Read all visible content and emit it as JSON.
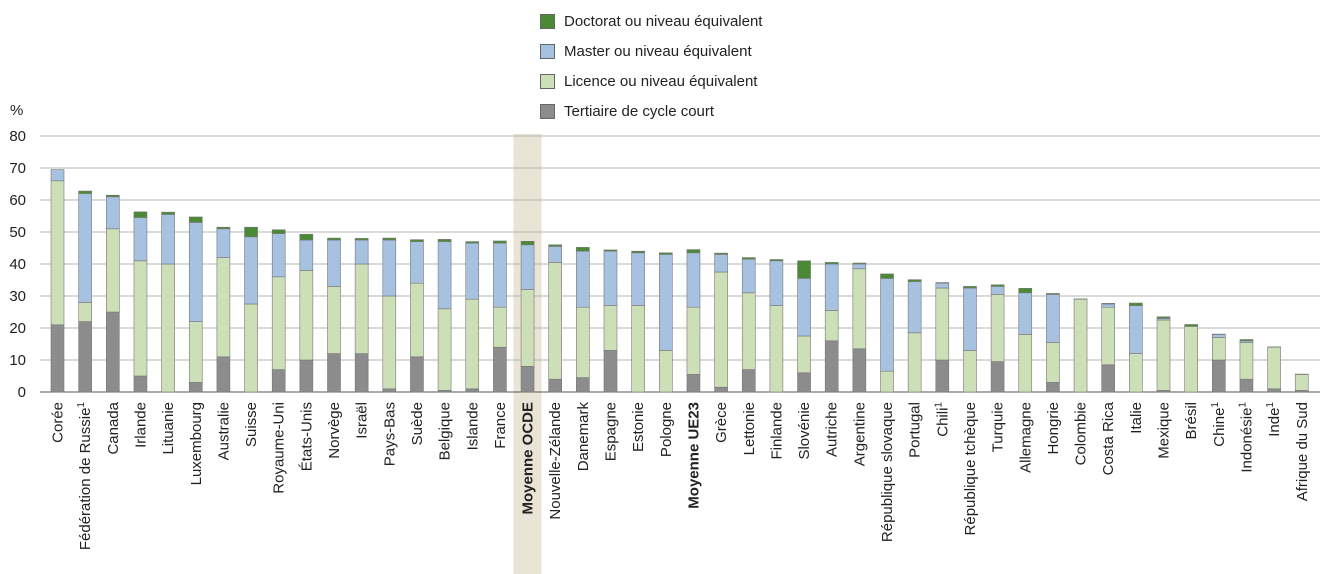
{
  "chart_data": {
    "type": "bar",
    "stacked": true,
    "ylabel": "%",
    "ylim": [
      0,
      80
    ],
    "yticks": [
      0,
      10,
      20,
      30,
      40,
      50,
      60,
      70,
      80
    ],
    "grid": true,
    "legend_placement": "top-center",
    "categories": [
      "Corée",
      "Fédération de Russie¹",
      "Canada",
      "Irlande",
      "Lituanie",
      "Luxembourg",
      "Australie",
      "Suisse",
      "Royaume-Uni",
      "États-Unis",
      "Norvège",
      "Israël",
      "Pays-Bas",
      "Suède",
      "Belgique",
      "Islande",
      "France",
      "Moyenne OCDE",
      "Nouvelle-Zélande",
      "Danemark",
      "Espagne",
      "Estonie",
      "Pologne",
      "Moyenne UE23",
      "Grèce",
      "Lettonie",
      "Finlande",
      "Slovénie",
      "Autriche",
      "Argentine",
      "République slovaque",
      "Portugal",
      "Chili¹",
      "République tchèque",
      "Turquie",
      "Allemagne",
      "Hongrie",
      "Colombie",
      "Costa Rica",
      "Italie",
      "Mexique",
      "Brésil",
      "Chine¹",
      "Indonésie¹",
      "Inde¹",
      "Afrique du Sud"
    ],
    "bold_categories": [
      "Moyenne OCDE",
      "Moyenne UE23"
    ],
    "highlight_category": "Moyenne OCDE",
    "series": [
      {
        "name": "Tertiaire de cycle court",
        "color": "#8c8c8c",
        "values": [
          21,
          22,
          25,
          5,
          0,
          3,
          11,
          0,
          7,
          10,
          12,
          12,
          1,
          11,
          0.5,
          1,
          14,
          8,
          4,
          4.5,
          13,
          0,
          0,
          5.5,
          1.5,
          7,
          0,
          6,
          16,
          13.5,
          0,
          0,
          10,
          0,
          9.5,
          0,
          3,
          0,
          8.5,
          0,
          0.5,
          0,
          10,
          4,
          1,
          0.5
        ]
      },
      {
        "name": "Licence ou niveau équivalent",
        "color": "#cddfb7",
        "values": [
          45,
          6,
          26,
          36,
          40,
          19,
          31,
          27.5,
          29,
          28,
          21,
          28,
          29,
          23,
          25.5,
          28,
          12.5,
          24,
          36.5,
          22,
          14,
          27,
          13,
          21,
          36,
          24,
          27,
          11.5,
          9.5,
          25,
          6.5,
          18.5,
          22.5,
          13,
          21,
          18,
          12.5,
          29,
          18,
          12,
          22,
          20.5,
          7,
          11.5,
          13,
          5
        ]
      },
      {
        "name": "Master ou niveau équivalent",
        "color": "#a7c1e1",
        "values": [
          3.5,
          34,
          10,
          13.5,
          15.5,
          31,
          9,
          21,
          13.5,
          9.5,
          14.5,
          7.5,
          17.5,
          13,
          21,
          17.5,
          20,
          14,
          5,
          17.5,
          17,
          16.5,
          30,
          17,
          5.5,
          10.5,
          14,
          18,
          14.5,
          1.5,
          29,
          16,
          1.5,
          19.5,
          2.5,
          13,
          15,
          0,
          1,
          15,
          0.5,
          0,
          1,
          0.5,
          0,
          0
        ]
      },
      {
        "name": "Doctorat ou niveau équivalent",
        "color": "#4a8a35",
        "values": [
          0,
          0.8,
          0.5,
          1.8,
          0.7,
          1.7,
          0.5,
          3,
          1.2,
          1.8,
          0.6,
          0.5,
          0.6,
          0.6,
          0.7,
          0.5,
          0.7,
          1.1,
          0.5,
          1.2,
          0.4,
          0.5,
          0.5,
          1.0,
          0.4,
          0.5,
          0.4,
          5.5,
          0.5,
          0.3,
          1.4,
          0.6,
          0.2,
          0.5,
          0.5,
          1.4,
          0.3,
          0.1,
          0.2,
          0.8,
          0.5,
          0.6,
          0.1,
          0.4,
          0.1,
          0.1
        ]
      }
    ]
  }
}
